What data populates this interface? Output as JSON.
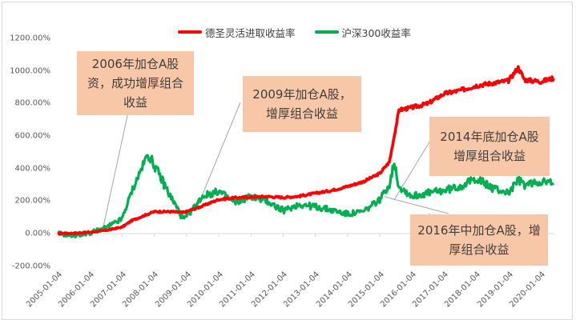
{
  "chart_data": {
    "type": "line",
    "title": "",
    "xlabel": "",
    "ylabel": "",
    "ylim": [
      -200,
      1200
    ],
    "y_ticks": [
      "1200.00%",
      "1000.00%",
      "800.00%",
      "600.00%",
      "400.00%",
      "200.00%",
      "0.00%",
      "-200.00%"
    ],
    "x_ticks": [
      "2005-01-04",
      "2006-01-04",
      "2007-01-04",
      "2008-01-04",
      "2009-01-04",
      "2010-01-04",
      "2011-01-04",
      "2012-01-04",
      "2013-01-04",
      "2014-01-04",
      "2015-01-04",
      "2016-01-04",
      "2017-01-04",
      "2018-01-04",
      "2019-01-04",
      "2020-01-04"
    ],
    "grid": false,
    "legend_position": "top",
    "x": [
      2005.0,
      2005.5,
      2006.0,
      2006.5,
      2007.0,
      2007.3,
      2007.8,
      2008.0,
      2008.5,
      2008.9,
      2009.0,
      2009.5,
      2010.0,
      2010.5,
      2011.0,
      2011.5,
      2012.0,
      2012.5,
      2013.0,
      2013.5,
      2014.0,
      2014.5,
      2015.0,
      2015.3,
      2015.45,
      2015.6,
      2016.0,
      2016.5,
      2017.0,
      2017.5,
      2018.0,
      2018.5,
      2019.0,
      2019.3,
      2019.5,
      2020.0,
      2020.4
    ],
    "series": [
      {
        "name": "德圣灵活进取收益率",
        "color": "#ff0000",
        "values": [
          0,
          2,
          8,
          20,
          40,
          80,
          120,
          135,
          135,
          130,
          135,
          170,
          210,
          220,
          225,
          228,
          222,
          230,
          248,
          265,
          290,
          320,
          370,
          440,
          600,
          760,
          775,
          800,
          860,
          880,
          910,
          925,
          940,
          1020,
          945,
          935,
          955
        ]
      },
      {
        "name": "沪深300收益率",
        "color": "#00b050",
        "values": [
          0,
          -10,
          5,
          35,
          90,
          260,
          490,
          420,
          230,
          90,
          100,
          230,
          260,
          190,
          230,
          200,
          140,
          180,
          165,
          145,
          120,
          135,
          210,
          300,
          440,
          290,
          230,
          250,
          265,
          290,
          340,
          280,
          250,
          330,
          300,
          320,
          310
        ]
      }
    ],
    "annotations": [
      "2006年加仓A股资，成功增厚组合收益",
      "2009年加仓A股，增厚组合收益",
      "2014年底加仓A股增厚组合收益",
      "2016年中加仓A股，增厚组合收益"
    ]
  },
  "legend": {
    "series1": "德圣灵活进取收益率",
    "series2": "沪深300收益率"
  },
  "callouts": {
    "c2006": "2006年加仓A股资，成功增厚组合收益",
    "c2009": "2009年加仓A股，增厚组合收益",
    "c2014": "2014年底加仓A股增厚组合收益",
    "c2016": "2016年中加仓A股，增厚组合收益"
  },
  "colors": {
    "series1": "#ff0000",
    "series2": "#00b050",
    "callout_bg": "#f7c7a8"
  }
}
